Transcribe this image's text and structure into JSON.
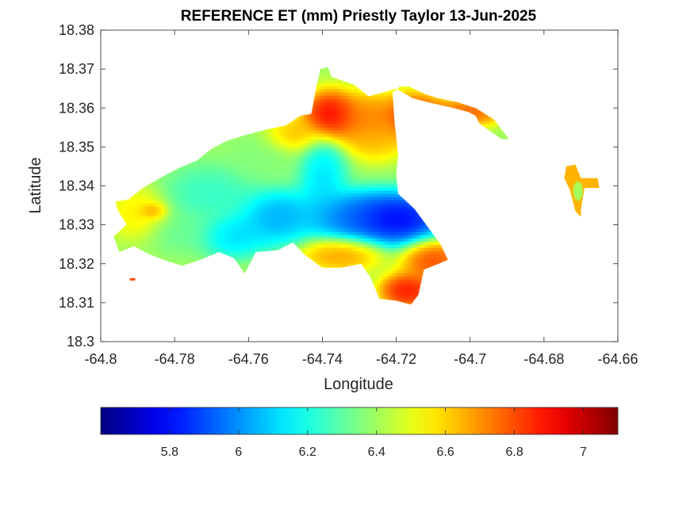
{
  "chart_data": {
    "type": "heatmap",
    "title": "REFERENCE ET (mm) Priestly Taylor 13-Jun-2025",
    "xlabel": "Longitude",
    "ylabel": "Latitude",
    "xlim": [
      -64.8,
      -64.66
    ],
    "ylim": [
      18.3,
      18.38
    ],
    "xticks": [
      -64.8,
      -64.78,
      -64.76,
      -64.74,
      -64.72,
      -64.7,
      -64.68,
      -64.66
    ],
    "yticks": [
      18.3,
      18.31,
      18.32,
      18.33,
      18.34,
      18.35,
      18.36,
      18.37,
      18.38
    ],
    "xtick_labels": [
      "-64.8",
      "-64.78",
      "-64.76",
      "-64.74",
      "-64.72",
      "-64.7",
      "-64.68",
      "-64.66"
    ],
    "ytick_labels": [
      "18.3",
      "18.31",
      "18.32",
      "18.33",
      "18.34",
      "18.35",
      "18.36",
      "18.37",
      "18.38"
    ],
    "colormap": "jet",
    "colorbar": {
      "orientation": "horizontal",
      "placement": "below",
      "clim": [
        5.6,
        7.1
      ],
      "ticks": [
        5.8,
        6.0,
        6.2,
        6.4,
        6.6,
        6.8,
        7.0
      ],
      "tick_labels": [
        "5.8",
        "6",
        "6.2",
        "6.4",
        "6.6",
        "6.8",
        "7"
      ]
    },
    "grid": false,
    "boundary": [
      [
        -64.7925,
        18.3365
      ],
      [
        -64.7885,
        18.3395
      ],
      [
        -64.784,
        18.342
      ],
      [
        -64.779,
        18.3445
      ],
      [
        -64.774,
        18.3465
      ],
      [
        -64.77,
        18.3495
      ],
      [
        -64.766,
        18.3515
      ],
      [
        -64.761,
        18.353
      ],
      [
        -64.755,
        18.3545
      ],
      [
        -64.75,
        18.3555
      ],
      [
        -64.746,
        18.358
      ],
      [
        -64.743,
        18.3585
      ],
      [
        -64.7415,
        18.366
      ],
      [
        -64.7405,
        18.37
      ],
      [
        -64.7385,
        18.3705
      ],
      [
        -64.7375,
        18.368
      ],
      [
        -64.7345,
        18.367
      ],
      [
        -64.7315,
        18.366
      ],
      [
        -64.7275,
        18.363
      ],
      [
        -64.7235,
        18.364
      ],
      [
        -64.72,
        18.365
      ],
      [
        -64.7155,
        18.3625
      ],
      [
        -64.7115,
        18.3615
      ],
      [
        -64.7045,
        18.36
      ],
      [
        -64.7005,
        18.359
      ],
      [
        -64.6985,
        18.358
      ],
      [
        -64.6975,
        18.356
      ],
      [
        -64.6945,
        18.354
      ],
      [
        -64.6915,
        18.352
      ],
      [
        -64.6895,
        18.352
      ],
      [
        -64.6935,
        18.357
      ],
      [
        -64.6985,
        18.36
      ],
      [
        -64.7035,
        18.3615
      ],
      [
        -64.7085,
        18.3625
      ],
      [
        -64.712,
        18.3635
      ],
      [
        -64.7165,
        18.3655
      ],
      [
        -64.719,
        18.3655
      ],
      [
        -64.721,
        18.364
      ],
      [
        -64.7205,
        18.357
      ],
      [
        -64.7195,
        18.348
      ],
      [
        -64.72,
        18.343
      ],
      [
        -64.7195,
        18.338
      ],
      [
        -64.715,
        18.334
      ],
      [
        -64.7115,
        18.3295
      ],
      [
        -64.708,
        18.325
      ],
      [
        -64.706,
        18.321
      ],
      [
        -64.7085,
        18.32
      ],
      [
        -64.7125,
        18.3185
      ],
      [
        -64.714,
        18.312
      ],
      [
        -64.716,
        18.3095
      ],
      [
        -64.72,
        18.3105
      ],
      [
        -64.7245,
        18.311
      ],
      [
        -64.727,
        18.3165
      ],
      [
        -64.7295,
        18.32
      ],
      [
        -64.735,
        18.319
      ],
      [
        -64.74,
        18.319
      ],
      [
        -64.745,
        18.3225
      ],
      [
        -64.748,
        18.3255
      ],
      [
        -64.752,
        18.3235
      ],
      [
        -64.758,
        18.323
      ],
      [
        -64.761,
        18.3175
      ],
      [
        -64.764,
        18.3215
      ],
      [
        -64.768,
        18.323
      ],
      [
        -64.773,
        18.321
      ],
      [
        -64.778,
        18.3195
      ],
      [
        -64.783,
        18.321
      ],
      [
        -64.787,
        18.3225
      ],
      [
        -64.791,
        18.3245
      ],
      [
        -64.795,
        18.323
      ],
      [
        -64.7965,
        18.327
      ],
      [
        -64.793,
        18.33
      ],
      [
        -64.7955,
        18.334
      ],
      [
        -64.796,
        18.336
      ]
    ],
    "field_sources": [
      {
        "lon": -64.7205,
        "lat": 18.3315,
        "value": 5.62,
        "rlon": 0.008,
        "rlat": 0.0038
      },
      {
        "lon": -64.733,
        "lat": 18.332,
        "value": 5.9,
        "rlon": 0.006,
        "rlat": 0.0035
      },
      {
        "lon": -64.752,
        "lat": 18.332,
        "value": 5.95,
        "rlon": 0.006,
        "rlat": 0.004
      },
      {
        "lon": -64.764,
        "lat": 18.327,
        "value": 6.05,
        "rlon": 0.005,
        "rlat": 0.003
      },
      {
        "lon": -64.74,
        "lat": 18.342,
        "value": 6.05,
        "rlon": 0.0035,
        "rlat": 0.006
      },
      {
        "lon": -64.778,
        "lat": 18.328,
        "value": 6.3,
        "rlon": 0.005,
        "rlat": 0.003
      },
      {
        "lon": -64.77,
        "lat": 18.338,
        "value": 6.2,
        "rlon": 0.007,
        "rlat": 0.004
      },
      {
        "lon": -64.756,
        "lat": 18.347,
        "value": 6.35,
        "rlon": 0.006,
        "rlat": 0.004
      },
      {
        "lon": -64.79,
        "lat": 18.333,
        "value": 6.6,
        "rlon": 0.0045,
        "rlat": 0.0035
      },
      {
        "lon": -64.786,
        "lat": 18.3335,
        "value": 6.75,
        "rlon": 0.002,
        "rlat": 0.0012
      },
      {
        "lon": -64.738,
        "lat": 18.358,
        "value": 7.05,
        "rlon": 0.004,
        "rlat": 0.0035
      },
      {
        "lon": -64.728,
        "lat": 18.3565,
        "value": 6.8,
        "rlon": 0.005,
        "rlat": 0.004
      },
      {
        "lon": -64.715,
        "lat": 18.3575,
        "value": 6.95,
        "rlon": 0.005,
        "rlat": 0.0035
      },
      {
        "lon": -64.725,
        "lat": 18.352,
        "value": 6.65,
        "rlon": 0.004,
        "rlat": 0.003
      },
      {
        "lon": -64.71,
        "lat": 18.321,
        "value": 6.9,
        "rlon": 0.0045,
        "rlat": 0.003
      },
      {
        "lon": -64.717,
        "lat": 18.313,
        "value": 7.0,
        "rlon": 0.004,
        "rlat": 0.0025
      },
      {
        "lon": -64.735,
        "lat": 18.3225,
        "value": 6.75,
        "rlon": 0.006,
        "rlat": 0.0025
      },
      {
        "lon": -64.7,
        "lat": 18.359,
        "value": 6.85,
        "rlon": 0.005,
        "rlat": 0.002
      },
      {
        "lon": -64.748,
        "lat": 18.353,
        "value": 6.7,
        "rlon": 0.004,
        "rlat": 0.0025
      }
    ],
    "background_value": 6.4,
    "eastern_island": {
      "boundary": [
        [
          -64.674,
          18.345
        ],
        [
          -64.6715,
          18.3455
        ],
        [
          -64.67,
          18.342
        ],
        [
          -64.6655,
          18.342
        ],
        [
          -64.665,
          18.3395
        ],
        [
          -64.669,
          18.3395
        ],
        [
          -64.67,
          18.334
        ],
        [
          -64.67,
          18.332
        ],
        [
          -64.6715,
          18.3335
        ],
        [
          -64.673,
          18.339
        ],
        [
          -64.6745,
          18.342
        ]
      ],
      "core_value": 6.4,
      "edge_value": 6.65
    },
    "fragments": [
      {
        "lon": -64.7915,
        "lat": 18.316,
        "value": 6.8
      }
    ]
  }
}
